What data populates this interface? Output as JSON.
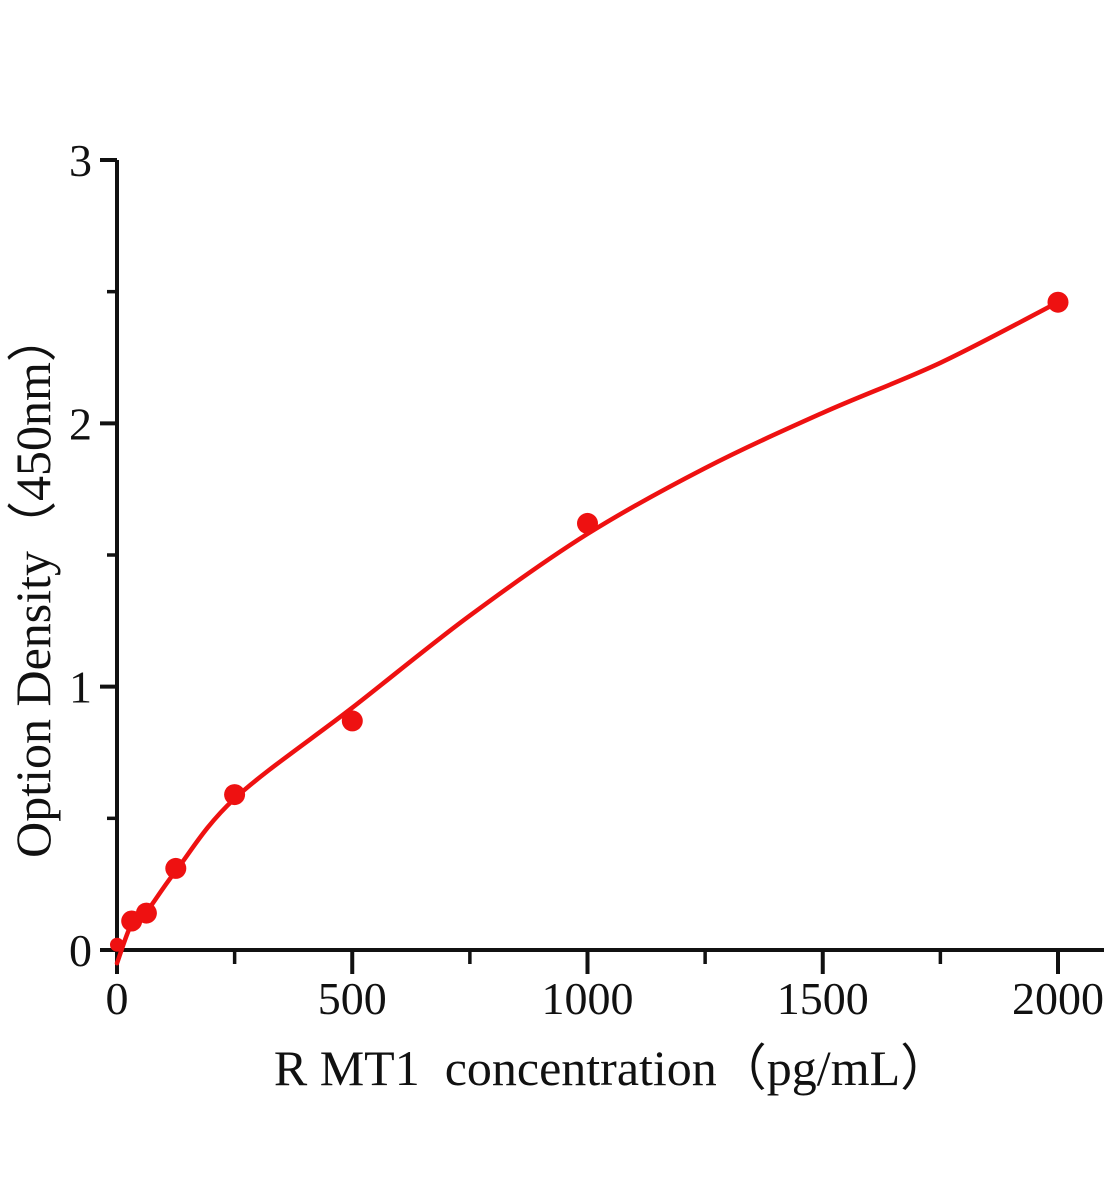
{
  "figure": {
    "background": "#ffffff"
  },
  "chart_data": {
    "type": "scatter",
    "title": "",
    "xlabel": "R MT1  concentration（pg/mL）",
    "ylabel": "Option Density（450nm）",
    "xlim": [
      0,
      2000
    ],
    "ylim": [
      0,
      3
    ],
    "x_ticks_major": [
      0,
      500,
      1000,
      1500,
      2000
    ],
    "x_ticks_minor": [
      250,
      750,
      1250,
      1750
    ],
    "y_ticks_major": [
      0,
      1,
      2,
      3
    ],
    "y_ticks_minor": [
      0.5,
      1.5,
      2.5
    ],
    "grid": false,
    "legend": false,
    "axis_color": "#111111",
    "series": [
      {
        "name": "standard curve",
        "marker": "circle",
        "marker_color": "#ee1111",
        "line_color": "#ee1111",
        "points": [
          {
            "x": 0,
            "y": 0.02
          },
          {
            "x": 31.25,
            "y": 0.11
          },
          {
            "x": 62.5,
            "y": 0.14
          },
          {
            "x": 125,
            "y": 0.31
          },
          {
            "x": 250,
            "y": 0.59
          },
          {
            "x": 500,
            "y": 0.87
          },
          {
            "x": 1000,
            "y": 1.62
          },
          {
            "x": 2000,
            "y": 2.46
          }
        ],
        "fit_curve": [
          [
            0,
            -0.05
          ],
          [
            31.25,
            0.1
          ],
          [
            62.5,
            0.145
          ],
          [
            125,
            0.3
          ],
          [
            250,
            0.575
          ],
          [
            500,
            0.92
          ],
          [
            750,
            1.27
          ],
          [
            1000,
            1.58
          ],
          [
            1250,
            1.83
          ],
          [
            1500,
            2.04
          ],
          [
            1750,
            2.23
          ],
          [
            2000,
            2.46
          ]
        ]
      }
    ]
  }
}
